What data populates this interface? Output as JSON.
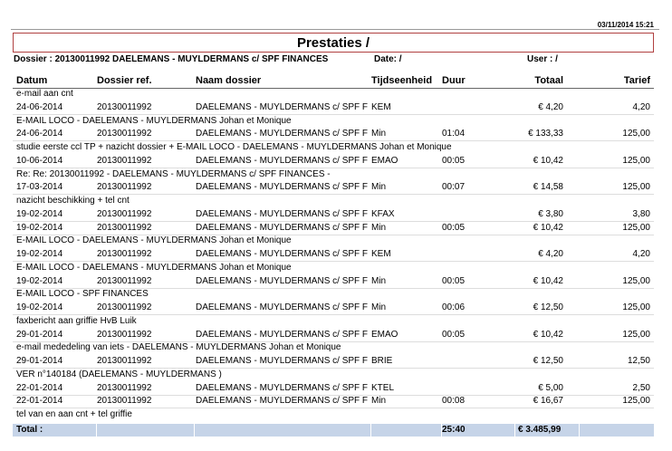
{
  "header": {
    "timestamp": "03/11/2014 15:21",
    "title": "Prestaties /",
    "dossier": "Dossier : 20130011992 DAELEMANS - MUYLDERMANS c/ SPF FINANCES",
    "date": "Date: /",
    "user": "User : /"
  },
  "table": {
    "columns": [
      "Datum",
      "Dossier ref.",
      "Naam dossier",
      "Tijdseenheid",
      "Duur",
      "Totaal",
      "Tarief"
    ],
    "rows": [
      {
        "description": "e-mail aan cnt"
      },
      {
        "cells": [
          "24-06-2014",
          "20130011992",
          "DAELEMANS - MUYLDERMANS c/ SPF F",
          "KEM",
          null,
          "€ 4,20",
          "4,20"
        ]
      },
      {
        "description": "E-MAIL LOCO - DAELEMANS - MUYLDERMANS  Johan et Monique"
      },
      {
        "cells": [
          "24-06-2014",
          "20130011992",
          "DAELEMANS - MUYLDERMANS c/ SPF F",
          "Min",
          "01:04",
          "€ 133,33",
          "125,00"
        ]
      },
      {
        "description": "studie eerste ccl TP + nazicht dossier + E-MAIL LOCO - DAELEMANS - MUYLDERMANS  Johan et Monique"
      },
      {
        "cells": [
          "10-06-2014",
          "20130011992",
          "DAELEMANS - MUYLDERMANS c/ SPF F",
          "EMAO",
          "00:05",
          "€ 10,42",
          "125,00"
        ]
      },
      {
        "description": "Re: Re: 20130011992 - DAELEMANS - MUYLDERMANS c/ SPF FINANCES -"
      },
      {
        "cells": [
          "17-03-2014",
          "20130011992",
          "DAELEMANS - MUYLDERMANS c/ SPF F",
          "Min",
          "00:07",
          "€ 14,58",
          "125,00"
        ]
      },
      {
        "description": "nazicht beschikking + tel cnt"
      },
      {
        "cells": [
          "19-02-2014",
          "20130011992",
          "DAELEMANS - MUYLDERMANS c/ SPF F",
          "KFAX",
          null,
          "€ 3,80",
          "3,80"
        ]
      },
      {
        "cells": [
          "19-02-2014",
          "20130011992",
          "DAELEMANS - MUYLDERMANS c/ SPF F",
          "Min",
          "00:05",
          "€ 10,42",
          "125,00"
        ]
      },
      {
        "description": "E-MAIL LOCO - DAELEMANS - MUYLDERMANS  Johan et Monique"
      },
      {
        "cells": [
          "19-02-2014",
          "20130011992",
          "DAELEMANS - MUYLDERMANS c/ SPF F",
          "KEM",
          null,
          "€ 4,20",
          "4,20"
        ]
      },
      {
        "description": "E-MAIL LOCO - DAELEMANS - MUYLDERMANS  Johan et Monique"
      },
      {
        "cells": [
          "19-02-2014",
          "20130011992",
          "DAELEMANS - MUYLDERMANS c/ SPF F",
          "Min",
          "00:05",
          "€ 10,42",
          "125,00"
        ]
      },
      {
        "description": "E-MAIL LOCO - SPF FINANCES"
      },
      {
        "cells": [
          "19-02-2014",
          "20130011992",
          "DAELEMANS - MUYLDERMANS c/ SPF F",
          "Min",
          "00:06",
          "€ 12,50",
          "125,00"
        ]
      },
      {
        "description": "faxbericht aan griffie HvB Luik"
      },
      {
        "cells": [
          "29-01-2014",
          "20130011992",
          "DAELEMANS - MUYLDERMANS c/ SPF F",
          "EMAO",
          "00:05",
          "€ 10,42",
          "125,00"
        ]
      },
      {
        "description": "e-mail mededeling van iets - DAELEMANS - MUYLDERMANS  Johan et Monique"
      },
      {
        "cells": [
          "29-01-2014",
          "20130011992",
          "DAELEMANS - MUYLDERMANS c/ SPF F",
          "BRIE",
          null,
          "€ 12,50",
          "12,50"
        ]
      },
      {
        "description": "VER n°140184 (DAELEMANS - MUYLDERMANS )"
      },
      {
        "cells": [
          "22-01-2014",
          "20130011992",
          "DAELEMANS - MUYLDERMANS c/ SPF F",
          "KTEL",
          null,
          "€ 5,00",
          "2,50"
        ]
      },
      {
        "cells": [
          "22-01-2014",
          "20130011992",
          "DAELEMANS - MUYLDERMANS c/ SPF F",
          "Min",
          "00:08",
          "€ 16,67",
          "125,00"
        ]
      },
      {
        "description": "tel van en aan cnt + tel griffie"
      }
    ],
    "total": {
      "label": "Total :",
      "duur": "25:40",
      "totaal": "€ 3.485,99"
    }
  }
}
